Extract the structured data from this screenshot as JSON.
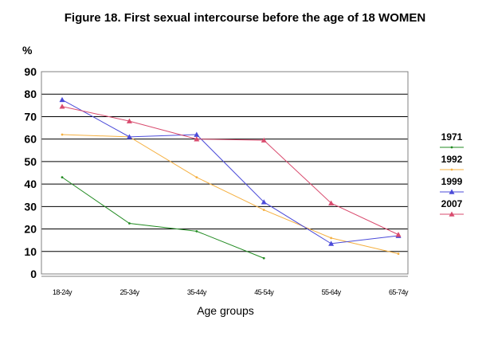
{
  "chart_data": {
    "type": "line",
    "title": "Figure 18. First sexual intercourse before the age of 18 WOMEN",
    "ylabel": "%",
    "xlabel": "Age groups",
    "categories": [
      "18-24y",
      "25-34y",
      "35-44y",
      "45-54y",
      "55-64y",
      "65-74y"
    ],
    "ylim": [
      0,
      90
    ],
    "yticks": [
      0,
      10,
      20,
      30,
      40,
      50,
      60,
      70,
      80,
      90
    ],
    "grid": true,
    "legend_position": "right",
    "series": [
      {
        "name": "1971",
        "color": "#228b22",
        "marker": "dot",
        "values": [
          43,
          22.5,
          19,
          7,
          null,
          null
        ]
      },
      {
        "name": "1992",
        "color": "#f5b041",
        "marker": "dot",
        "values": [
          62,
          61,
          43,
          28.5,
          16,
          9
        ]
      },
      {
        "name": "1999",
        "color": "#4b4bd9",
        "marker": "triangle",
        "values": [
          77.5,
          61,
          62,
          32,
          13.5,
          17
        ]
      },
      {
        "name": "2007",
        "color": "#d94b6e",
        "marker": "triangle",
        "values": [
          74.5,
          68,
          60,
          59.5,
          31.5,
          17.5
        ]
      }
    ]
  }
}
